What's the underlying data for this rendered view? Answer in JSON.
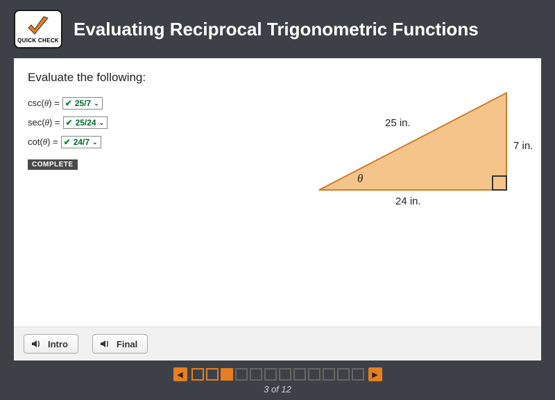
{
  "header": {
    "logo_text": "QUICK CHECK",
    "title": "Evaluating Reciprocal Trigonometric Functions"
  },
  "question": {
    "prompt": "Evaluate the following:",
    "rows": [
      {
        "func": "csc",
        "value": "25/7"
      },
      {
        "func": "sec",
        "value": "25/24"
      },
      {
        "func": "cot",
        "value": "24/7"
      }
    ],
    "complete_label": "COMPLETE"
  },
  "triangle": {
    "hypotenuse": "25 in.",
    "opposite": "7 in.",
    "adjacent": "24 in.",
    "angle_label": "θ",
    "fill_color": "#f5c48a",
    "stroke_color": "#c97f2d"
  },
  "footer": {
    "buttons": [
      "Intro",
      "Final"
    ]
  },
  "nav": {
    "total": 12,
    "current": 3,
    "page_text": "3 of 12"
  },
  "colors": {
    "accent": "#e67e22",
    "header_bg": "#3d4147"
  }
}
